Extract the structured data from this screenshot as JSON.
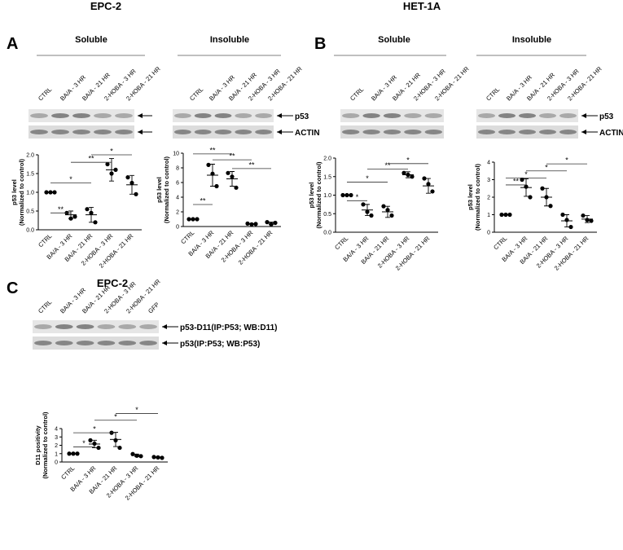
{
  "figure": {
    "panels": [
      {
        "letter": "A",
        "title": "EPC-2",
        "groups": [
          {
            "heading": "Soluble",
            "lanes": [
              "CTRL",
              "BA/A - 3 HR",
              "BA/A - 21 HR",
              "2-HOBA - 3 HR",
              "2-HOBA - 21 HR"
            ],
            "bands": []
          },
          {
            "heading": "Insoluble",
            "lanes": [
              "CTRL",
              "BA/A - 3 HR",
              "BA/A - 21 HR",
              "2-HOBA - 3 HR",
              "2-HOBA - 21 HR"
            ],
            "bands": [
              "p53",
              "ACTIN"
            ]
          }
        ]
      },
      {
        "letter": "B",
        "title": "HET-1A",
        "groups": [
          {
            "heading": "Soluble",
            "lanes": [
              "CTRL",
              "BA/A - 3 HR",
              "BA/A - 21 HR",
              "2-HOBA - 3 HR",
              "2-HOBA - 21 HR"
            ],
            "bands": []
          },
          {
            "heading": "Insoluble",
            "lanes": [
              "CTRL",
              "BA/A - 3 HR",
              "BA/A - 21 HR",
              "2-HOBA - 3 HR",
              "2-HOBA - 21 HR"
            ],
            "bands": [
              "p53",
              "ACTIN"
            ]
          }
        ]
      },
      {
        "letter": "C",
        "title": "EPC-2",
        "groups": [
          {
            "lanes": [
              "CTRL",
              "BA/A - 3 HR",
              "BA/A - 21 HR",
              "2-HOBA - 3 HR",
              "2-HOBA - 21 HR",
              "GFP"
            ],
            "bands": [
              "p53-D11(IP:P53; WB:D11)",
              "p53(IP:P53; WB:P53)"
            ]
          }
        ]
      }
    ]
  },
  "chart_data": [
    {
      "type": "dot",
      "color": "#000000",
      "ylabel": [
        "p53 level",
        "(Normalized to control)"
      ],
      "categories": [
        "CTRL",
        "BA/A - 3 HR",
        "BA/A - 21 HR",
        "2-HOBA - 3 HR",
        "2-HOBA - 21 HR"
      ],
      "points": [
        [
          1,
          1,
          1
        ],
        [
          0.45,
          0.3,
          0.35
        ],
        [
          0.55,
          0.45,
          0.2
        ],
        [
          1.75,
          1.5,
          1.6
        ],
        [
          1.4,
          1.25,
          0.95
        ]
      ],
      "means": [
        1,
        0.4,
        0.4,
        1.6,
        1.2
      ],
      "errors": [
        0,
        0.1,
        0.2,
        0.3,
        0.25
      ],
      "ylim": [
        0,
        2
      ],
      "yticks": [
        {
          "value": 0,
          "label": "0.0"
        },
        0.5,
        {
          "value": 1,
          "label": "1.0"
        },
        1.5,
        {
          "value": 2,
          "label": "2.0"
        }
      ],
      "brackets": [
        {
          "between": [
            0,
            1
          ],
          "y": 0.45,
          "label": "**"
        },
        {
          "between": [
            0,
            2
          ],
          "y": 1.25,
          "label": "*"
        },
        {
          "between": [
            1,
            3
          ],
          "y": 1.8,
          "label": "**"
        },
        {
          "between": [
            2,
            4
          ],
          "y": 2.0,
          "label": "*"
        }
      ]
    },
    {
      "type": "dot",
      "color": "#000000",
      "ylabel": [
        "p53 level",
        "(Normalized to control)"
      ],
      "categories": [
        "CTRL",
        "BA/A - 3 HR",
        "BA/A - 21 HR",
        "2-HOBA - 3 HR",
        "2-HOBA - 21 HR"
      ],
      "points": [
        [
          1,
          1,
          1
        ],
        [
          8.4,
          7.2,
          5.5
        ],
        [
          7.3,
          6.8,
          5.3
        ],
        [
          0.4,
          0.3,
          0.35
        ],
        [
          0.6,
          0.3,
          0.5
        ]
      ],
      "means": [
        1,
        7,
        6.5,
        0.35,
        0.45
      ],
      "errors": [
        0,
        1.5,
        1,
        0.05,
        0.15
      ],
      "ylim": [
        0,
        10
      ],
      "yticks": [
        0,
        2,
        4,
        6,
        8,
        10
      ],
      "brackets": [
        {
          "between": [
            0,
            1
          ],
          "y": 3,
          "label": "**"
        },
        {
          "between": [
            0,
            2
          ],
          "y": 9.9,
          "label": "**"
        },
        {
          "between": [
            1,
            3
          ],
          "y": 9.1,
          "label": "**"
        },
        {
          "between": [
            2,
            4
          ],
          "y": 7.9,
          "label": "**"
        }
      ]
    },
    {
      "type": "dot",
      "color": "#000000",
      "ylabel": [
        "p53 level",
        "(Normalized to control)"
      ],
      "categories": [
        "CTRL",
        "BA/A - 3 HR",
        "BA/A - 21 HR",
        "2-HOBA - 3 HR",
        "2-HOBA - 21 HR"
      ],
      "points": [
        [
          1,
          1,
          1
        ],
        [
          0.75,
          0.55,
          0.45
        ],
        [
          0.7,
          0.6,
          0.45
        ],
        [
          1.6,
          1.55,
          1.5
        ],
        [
          1.45,
          1.3,
          1.1
        ]
      ],
      "means": [
        1,
        0.6,
        0.55,
        1.55,
        1.25
      ],
      "errors": [
        0,
        0.15,
        0.15,
        0.08,
        0.2
      ],
      "ylim": [
        0,
        2
      ],
      "yticks": [
        {
          "value": 0,
          "label": "0.0"
        },
        0.5,
        {
          "value": 1,
          "label": "1.0"
        },
        1.5,
        {
          "value": 2,
          "label": "2.0"
        }
      ],
      "brackets": [
        {
          "between": [
            0,
            1
          ],
          "y": 0.85,
          "label": "*"
        },
        {
          "between": [
            0,
            2
          ],
          "y": 1.35,
          "label": "*"
        },
        {
          "between": [
            1,
            3
          ],
          "y": 1.7,
          "label": "**"
        },
        {
          "between": [
            2,
            4
          ],
          "y": 1.85,
          "label": "*"
        }
      ]
    },
    {
      "type": "dot",
      "color": "#000000",
      "ylabel": [
        "p53 level",
        "(Normalized to control)"
      ],
      "categories": [
        "CTRL",
        "BA/A - 3 HR",
        "BA/A - 21 HR",
        "2-HOBA - 3 HR",
        "2-HOBA - 21 HR"
      ],
      "points": [
        [
          1,
          1,
          1
        ],
        [
          3.0,
          2.6,
          2.0
        ],
        [
          2.5,
          2.0,
          1.5
        ],
        [
          1.0,
          0.7,
          0.3
        ],
        [
          0.95,
          0.7,
          0.65
        ]
      ],
      "means": [
        1,
        2.55,
        2,
        0.65,
        0.75
      ],
      "errors": [
        0,
        0.5,
        0.5,
        0.35,
        0.2
      ],
      "ylim": [
        0,
        4
      ],
      "yticks": [
        0,
        1,
        2,
        3,
        4
      ],
      "brackets": [
        {
          "between": [
            0,
            1
          ],
          "y": 2.7,
          "label": "**"
        },
        {
          "between": [
            0,
            2
          ],
          "y": 3.1,
          "label": "*"
        },
        {
          "between": [
            1,
            3
          ],
          "y": 3.5,
          "label": "*"
        },
        {
          "between": [
            2,
            4
          ],
          "y": 3.9,
          "label": "*"
        }
      ]
    },
    {
      "type": "dot",
      "color": "#000000",
      "ylabel": [
        "D11 positivity",
        "(Normalized to control)"
      ],
      "categories": [
        "CTRL",
        "BA/A - 3 HR",
        "BA/A - 21 HR",
        "2-HOBA - 3 HR",
        "2-HOBA - 21 HR"
      ],
      "points": [
        [
          1,
          1,
          1
        ],
        [
          2.6,
          2.2,
          1.7
        ],
        [
          3.5,
          2.6,
          1.7
        ],
        [
          0.95,
          0.75,
          0.7
        ],
        [
          0.6,
          0.55,
          0.5
        ]
      ],
      "means": [
        1,
        2.15,
        2.7,
        0.8,
        0.55
      ],
      "errors": [
        0,
        0.45,
        0.85,
        0.15,
        0.05
      ],
      "ylim": [
        0,
        4
      ],
      "yticks": [
        0,
        1,
        2,
        3,
        4
      ],
      "brackets": [
        {
          "between": [
            0,
            1
          ],
          "y": 1.8,
          "label": "*"
        },
        {
          "between": [
            0,
            2
          ],
          "y": 3.5,
          "label": "*"
        },
        {
          "between": [
            1,
            3
          ],
          "y": 5.0,
          "label": "*"
        },
        {
          "between": [
            2,
            4
          ],
          "y": 5.8,
          "label": "*"
        }
      ]
    }
  ]
}
